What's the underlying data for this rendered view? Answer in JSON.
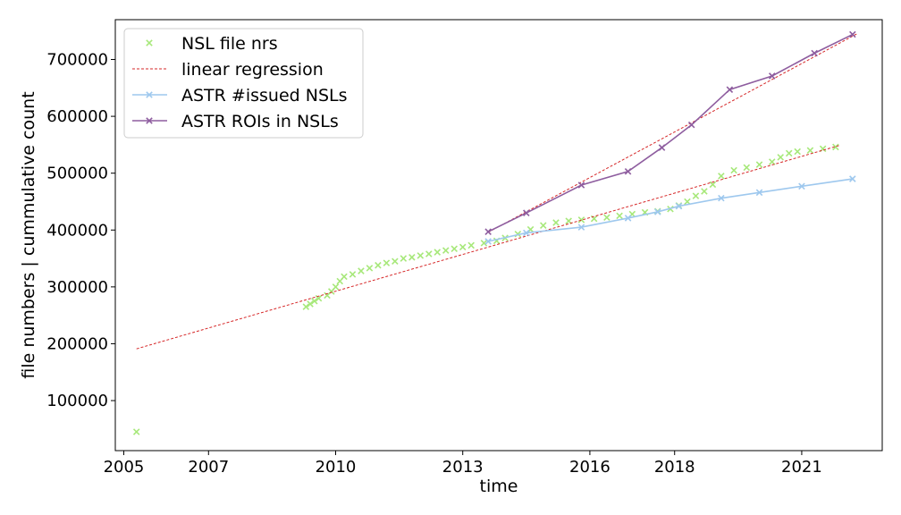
{
  "chart_data": {
    "type": "scatter",
    "xlabel": "time",
    "ylabel": "file numbers | cummulative count",
    "xlim": [
      2004.8,
      2022.9
    ],
    "ylim": [
      12000,
      770000
    ],
    "xticks": [
      2005,
      2007,
      2010,
      2013,
      2016,
      2018,
      2021
    ],
    "xtick_labels": [
      "2005",
      "2007",
      "2010",
      "2013",
      "2016",
      "2018",
      "2021"
    ],
    "yticks": [
      100000,
      200000,
      300000,
      400000,
      500000,
      600000,
      700000
    ],
    "ytick_labels": [
      "100000",
      "200000",
      "300000",
      "400000",
      "500000",
      "600000",
      "700000"
    ],
    "grid": false,
    "legend_position": "top-left",
    "colors": {
      "nsl": "#a7e87a",
      "regression": "#d62728",
      "issued": "#9ec8ee",
      "rois": "#8e5d9f"
    },
    "series": [
      {
        "name": "NSL file nrs",
        "kind": "scatter",
        "marker": "x",
        "color": "#a7e87a",
        "x": [
          2005.3,
          2009.3,
          2009.4,
          2009.5,
          2009.6,
          2009.8,
          2009.9,
          2010.0,
          2010.1,
          2010.2,
          2010.4,
          2010.6,
          2010.8,
          2011.0,
          2011.2,
          2011.4,
          2011.6,
          2011.8,
          2012.0,
          2012.2,
          2012.4,
          2012.6,
          2012.8,
          2013.0,
          2013.2,
          2013.5,
          2013.8,
          2014.0,
          2014.3,
          2014.6,
          2014.9,
          2015.2,
          2015.5,
          2015.8,
          2016.1,
          2016.4,
          2016.7,
          2017.0,
          2017.3,
          2017.6,
          2017.9,
          2018.1,
          2018.3,
          2018.5,
          2018.7,
          2018.9,
          2019.1,
          2019.4,
          2019.7,
          2020.0,
          2020.3,
          2020.5,
          2020.7,
          2020.9,
          2021.2,
          2021.5,
          2021.8
        ],
        "y": [
          45000,
          265000,
          270000,
          275000,
          280000,
          285000,
          292000,
          300000,
          310000,
          318000,
          322000,
          328000,
          333000,
          338000,
          342000,
          345000,
          350000,
          352000,
          355000,
          358000,
          361000,
          364000,
          367000,
          370000,
          373000,
          377000,
          381000,
          386000,
          393000,
          401000,
          408000,
          413000,
          416000,
          418000,
          420000,
          422000,
          425000,
          428000,
          431000,
          433000,
          437000,
          443000,
          450000,
          460000,
          468000,
          480000,
          495000,
          505000,
          510000,
          515000,
          520000,
          528000,
          535000,
          538000,
          540000,
          543000,
          546000
        ]
      },
      {
        "name": "linear regression",
        "kind": "regression",
        "color": "#d62728",
        "segments": [
          {
            "x": [
              2005.3,
              2021.9
            ],
            "y": [
              191000,
              549000
            ]
          },
          {
            "x": [
              2013.6,
              2022.3
            ],
            "y": [
              396000,
              745000
            ]
          }
        ]
      },
      {
        "name": "ASTR #issued NSLs",
        "kind": "line",
        "marker": "x",
        "color": "#9ec8ee",
        "x": [
          2013.6,
          2014.5,
          2015.8,
          2016.9,
          2017.6,
          2018.1,
          2019.1,
          2020.0,
          2021.0,
          2022.2
        ],
        "y": [
          380000,
          395000,
          405000,
          421000,
          432000,
          442000,
          456000,
          466000,
          477000,
          490000
        ]
      },
      {
        "name": "ASTR ROIs in NSLs",
        "kind": "line",
        "marker": "x",
        "color": "#8e5d9f",
        "x": [
          2013.6,
          2014.5,
          2015.8,
          2016.9,
          2017.7,
          2018.4,
          2019.3,
          2020.3,
          2021.3,
          2022.2
        ],
        "y": [
          397000,
          430000,
          479000,
          503000,
          545000,
          585000,
          647000,
          671000,
          711000,
          744000
        ]
      }
    ]
  }
}
